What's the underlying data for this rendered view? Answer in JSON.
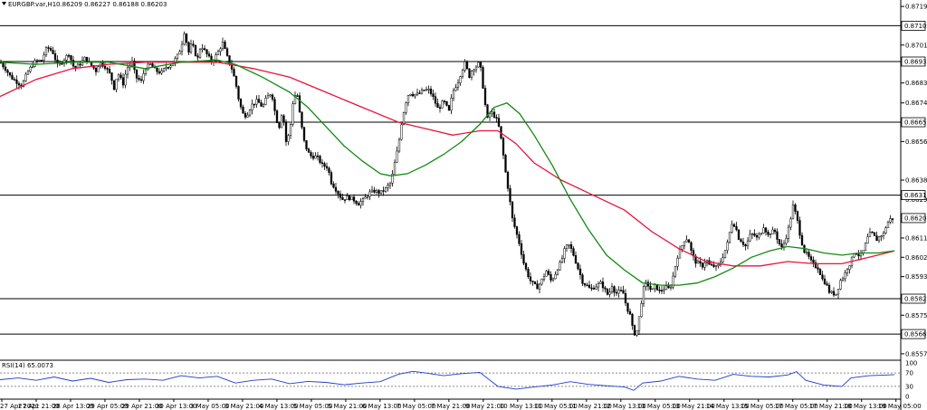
{
  "chart_data": {
    "type": "candlestick",
    "title": "EURGBP.var,H1",
    "ohlc_header": "0.86209 0.86227 0.86188 0.86203",
    "current_price": 0.86203,
    "ylim": [
      0.8554,
      0.8722
    ],
    "y_ticks": [
      "0.87190",
      "0.87010",
      "0.86833",
      "0.86740",
      "0.86560",
      "0.86380",
      "0.86290",
      "0.86110",
      "0.86020",
      "0.85930",
      "0.85750",
      "0.85570"
    ],
    "tags": [
      "0.87100",
      "0.86933",
      "0.86650",
      "0.86310",
      "0.86203",
      "0.85827",
      "0.85662"
    ],
    "x_ticks": [
      "27 Apr 2021",
      "27 Apr 21:00",
      "28 Apr 13:00",
      "29 Apr 05:00",
      "29 Apr 21:00",
      "30 Apr 13:00",
      "3 May 05:00",
      "3 May 21:00",
      "4 May 13:00",
      "5 May 05:00",
      "5 May 21:00",
      "6 May 13:00",
      "7 May 05:00",
      "7 May 21:00",
      "9 May 21:00",
      "10 May 13:00",
      "11 May 05:00",
      "11 May 21:00",
      "12 May 13:00",
      "13 May 05:00",
      "13 May 21:00",
      "14 May 13:00",
      "15 May 05:00",
      "17 May 05:00",
      "17 May 21:00",
      "18 May 13:00",
      "19 May 05:00"
    ],
    "horizontal_levels": [
      0.871,
      0.86933,
      0.8665,
      0.8631,
      0.85827,
      0.85662
    ],
    "close_path": [
      [
        0,
        0.8693
      ],
      [
        6,
        0.869
      ],
      [
        12,
        0.8686
      ],
      [
        18,
        0.8684
      ],
      [
        24,
        0.8682
      ],
      [
        30,
        0.8688
      ],
      [
        38,
        0.8693
      ],
      [
        46,
        0.8694
      ],
      [
        52,
        0.87
      ],
      [
        58,
        0.8698
      ],
      [
        64,
        0.8691
      ],
      [
        70,
        0.8694
      ],
      [
        76,
        0.8697
      ],
      [
        82,
        0.869
      ],
      [
        88,
        0.8692
      ],
      [
        94,
        0.8695
      ],
      [
        100,
        0.8692
      ],
      [
        106,
        0.8689
      ],
      [
        110,
        0.8693
      ],
      [
        116,
        0.8691
      ],
      [
        122,
        0.8687
      ],
      [
        126,
        0.8681
      ],
      [
        130,
        0.8688
      ],
      [
        136,
        0.8683
      ],
      [
        140,
        0.869
      ],
      [
        146,
        0.8693
      ],
      [
        150,
        0.8686
      ],
      [
        156,
        0.8684
      ],
      [
        160,
        0.869
      ],
      [
        166,
        0.8692
      ],
      [
        172,
        0.8689
      ],
      [
        178,
        0.8688
      ],
      [
        184,
        0.8691
      ],
      [
        190,
        0.8692
      ],
      [
        196,
        0.8696
      ],
      [
        200,
        0.87
      ],
      [
        204,
        0.8708
      ],
      [
        208,
        0.8697
      ],
      [
        212,
        0.8702
      ],
      [
        218,
        0.8694
      ],
      [
        222,
        0.8701
      ],
      [
        228,
        0.8697
      ],
      [
        234,
        0.8693
      ],
      [
        240,
        0.8697
      ],
      [
        246,
        0.8702
      ],
      [
        252,
        0.8694
      ],
      [
        256,
        0.869
      ],
      [
        260,
        0.8684
      ],
      [
        264,
        0.8675
      ],
      [
        268,
        0.8669
      ],
      [
        272,
        0.8668
      ],
      [
        278,
        0.8673
      ],
      [
        284,
        0.8675
      ],
      [
        290,
        0.8672
      ],
      [
        294,
        0.8676
      ],
      [
        300,
        0.8679
      ],
      [
        304,
        0.8669
      ],
      [
        308,
        0.8662
      ],
      [
        312,
        0.8671
      ],
      [
        316,
        0.8656
      ],
      [
        320,
        0.866
      ],
      [
        324,
        0.8676
      ],
      [
        328,
        0.8679
      ],
      [
        332,
        0.8666
      ],
      [
        336,
        0.8656
      ],
      [
        340,
        0.8651
      ],
      [
        344,
        0.8649
      ],
      [
        350,
        0.8649
      ],
      [
        356,
        0.8645
      ],
      [
        362,
        0.8644
      ],
      [
        366,
        0.8637
      ],
      [
        372,
        0.8633
      ],
      [
        378,
        0.8629
      ],
      [
        384,
        0.863
      ],
      [
        390,
        0.8629
      ],
      [
        396,
        0.8627
      ],
      [
        402,
        0.8629
      ],
      [
        408,
        0.8632
      ],
      [
        414,
        0.8633
      ],
      [
        420,
        0.8632
      ],
      [
        426,
        0.8634
      ],
      [
        432,
        0.8637
      ],
      [
        436,
        0.8646
      ],
      [
        440,
        0.8654
      ],
      [
        444,
        0.8666
      ],
      [
        448,
        0.8674
      ],
      [
        452,
        0.8679
      ],
      [
        456,
        0.8678
      ],
      [
        462,
        0.8678
      ],
      [
        468,
        0.868
      ],
      [
        474,
        0.868
      ],
      [
        478,
        0.8677
      ],
      [
        484,
        0.8671
      ],
      [
        490,
        0.8675
      ],
      [
        496,
        0.867
      ],
      [
        500,
        0.8679
      ],
      [
        506,
        0.8684
      ],
      [
        510,
        0.8689
      ],
      [
        514,
        0.8693
      ],
      [
        518,
        0.8686
      ],
      [
        522,
        0.869
      ],
      [
        526,
        0.8691
      ],
      [
        530,
        0.8693
      ],
      [
        534,
        0.868
      ],
      [
        538,
        0.8666
      ],
      [
        542,
        0.867
      ],
      [
        546,
        0.8668
      ],
      [
        550,
        0.8665
      ],
      [
        554,
        0.8656
      ],
      [
        558,
        0.8643
      ],
      [
        562,
        0.8632
      ],
      [
        566,
        0.862
      ],
      [
        570,
        0.8614
      ],
      [
        574,
        0.8608
      ],
      [
        578,
        0.86
      ],
      [
        582,
        0.8595
      ],
      [
        586,
        0.8591
      ],
      [
        590,
        0.8589
      ],
      [
        594,
        0.8588
      ],
      [
        598,
        0.8591
      ],
      [
        604,
        0.8596
      ],
      [
        608,
        0.8591
      ],
      [
        612,
        0.8593
      ],
      [
        616,
        0.8597
      ],
      [
        620,
        0.86
      ],
      [
        624,
        0.8606
      ],
      [
        628,
        0.8608
      ],
      [
        632,
        0.8605
      ],
      [
        636,
        0.86
      ],
      [
        640,
        0.8595
      ],
      [
        644,
        0.859
      ],
      [
        648,
        0.8589
      ],
      [
        652,
        0.8587
      ],
      [
        656,
        0.8588
      ],
      [
        660,
        0.8589
      ],
      [
        664,
        0.859
      ],
      [
        668,
        0.8587
      ],
      [
        672,
        0.8584
      ],
      [
        676,
        0.8589
      ],
      [
        680,
        0.8585
      ],
      [
        684,
        0.8586
      ],
      [
        688,
        0.8586
      ],
      [
        692,
        0.8579
      ],
      [
        696,
        0.8575
      ],
      [
        700,
        0.8566
      ],
      [
        704,
        0.8568
      ],
      [
        708,
        0.858
      ],
      [
        712,
        0.859
      ],
      [
        716,
        0.8589
      ],
      [
        720,
        0.8586
      ],
      [
        724,
        0.8589
      ],
      [
        728,
        0.8586
      ],
      [
        732,
        0.8587
      ],
      [
        736,
        0.8588
      ],
      [
        740,
        0.8587
      ],
      [
        744,
        0.8594
      ],
      [
        748,
        0.8602
      ],
      [
        752,
        0.8606
      ],
      [
        756,
        0.861
      ],
      [
        760,
        0.8611
      ],
      [
        764,
        0.8604
      ],
      [
        768,
        0.86
      ],
      [
        772,
        0.8599
      ],
      [
        776,
        0.8598
      ],
      [
        780,
        0.8601
      ],
      [
        784,
        0.8598
      ],
      [
        788,
        0.8598
      ],
      [
        792,
        0.8597
      ],
      [
        796,
        0.86
      ],
      [
        800,
        0.8604
      ],
      [
        804,
        0.8609
      ],
      [
        808,
        0.8618
      ],
      [
        812,
        0.8617
      ],
      [
        816,
        0.8611
      ],
      [
        820,
        0.8609
      ],
      [
        824,
        0.8607
      ],
      [
        828,
        0.8612
      ],
      [
        832,
        0.8613
      ],
      [
        836,
        0.8611
      ],
      [
        840,
        0.8613
      ],
      [
        844,
        0.8617
      ],
      [
        848,
        0.8612
      ],
      [
        852,
        0.8614
      ],
      [
        856,
        0.8614
      ],
      [
        860,
        0.8609
      ],
      [
        864,
        0.8606
      ],
      [
        868,
        0.8611
      ],
      [
        872,
        0.8617
      ],
      [
        876,
        0.8626
      ],
      [
        880,
        0.8621
      ],
      [
        884,
        0.8612
      ],
      [
        888,
        0.8605
      ],
      [
        892,
        0.8603
      ],
      [
        896,
        0.86
      ],
      [
        900,
        0.8598
      ],
      [
        904,
        0.8597
      ],
      [
        908,
        0.8592
      ],
      [
        912,
        0.859
      ],
      [
        916,
        0.8586
      ],
      [
        920,
        0.8585
      ],
      [
        924,
        0.8585
      ],
      [
        928,
        0.8591
      ],
      [
        932,
        0.8593
      ],
      [
        936,
        0.8597
      ],
      [
        940,
        0.86
      ],
      [
        944,
        0.8605
      ],
      [
        948,
        0.8603
      ],
      [
        952,
        0.8603
      ],
      [
        956,
        0.8608
      ],
      [
        960,
        0.8613
      ],
      [
        964,
        0.8613
      ],
      [
        968,
        0.861
      ],
      [
        972,
        0.8612
      ],
      [
        976,
        0.8613
      ],
      [
        980,
        0.8618
      ],
      [
        984,
        0.862
      ],
      [
        988,
        0.862
      ]
    ],
    "ma_green": [
      [
        0,
        0.8693
      ],
      [
        40,
        0.8692
      ],
      [
        80,
        0.8693
      ],
      [
        120,
        0.8693
      ],
      [
        160,
        0.869
      ],
      [
        200,
        0.8693
      ],
      [
        240,
        0.8694
      ],
      [
        260,
        0.8692
      ],
      [
        290,
        0.8686
      ],
      [
        320,
        0.8679
      ],
      [
        340,
        0.8672
      ],
      [
        360,
        0.8663
      ],
      [
        380,
        0.8654
      ],
      [
        400,
        0.8647
      ],
      [
        420,
        0.8641
      ],
      [
        432,
        0.864
      ],
      [
        450,
        0.8641
      ],
      [
        470,
        0.8645
      ],
      [
        490,
        0.865
      ],
      [
        510,
        0.8656
      ],
      [
        530,
        0.8664
      ],
      [
        546,
        0.8672
      ],
      [
        560,
        0.8674
      ],
      [
        574,
        0.8669
      ],
      [
        590,
        0.8659
      ],
      [
        610,
        0.8645
      ],
      [
        630,
        0.8629
      ],
      [
        650,
        0.8615
      ],
      [
        670,
        0.8603
      ],
      [
        690,
        0.8596
      ],
      [
        710,
        0.859
      ],
      [
        730,
        0.8589
      ],
      [
        750,
        0.8589
      ],
      [
        770,
        0.859
      ],
      [
        790,
        0.8593
      ],
      [
        810,
        0.8597
      ],
      [
        830,
        0.8602
      ],
      [
        850,
        0.8605
      ],
      [
        870,
        0.8607
      ],
      [
        890,
        0.8606
      ],
      [
        910,
        0.8604
      ],
      [
        930,
        0.8603
      ],
      [
        950,
        0.8604
      ],
      [
        970,
        0.8604
      ],
      [
        988,
        0.8605
      ]
    ],
    "ma_red": [
      [
        0,
        0.8677
      ],
      [
        40,
        0.8685
      ],
      [
        80,
        0.869
      ],
      [
        120,
        0.8692
      ],
      [
        160,
        0.8693
      ],
      [
        200,
        0.8693
      ],
      [
        240,
        0.8693
      ],
      [
        280,
        0.869
      ],
      [
        320,
        0.8686
      ],
      [
        360,
        0.8679
      ],
      [
        400,
        0.8672
      ],
      [
        440,
        0.8665
      ],
      [
        470,
        0.8662
      ],
      [
        500,
        0.8659
      ],
      [
        530,
        0.8661
      ],
      [
        550,
        0.8661
      ],
      [
        570,
        0.8655
      ],
      [
        590,
        0.8646
      ],
      [
        620,
        0.8638
      ],
      [
        650,
        0.8632
      ],
      [
        690,
        0.8624
      ],
      [
        720,
        0.8614
      ],
      [
        750,
        0.8606
      ],
      [
        780,
        0.86
      ],
      [
        810,
        0.8598
      ],
      [
        840,
        0.8598
      ],
      [
        870,
        0.86
      ],
      [
        900,
        0.8599
      ],
      [
        930,
        0.8599
      ],
      [
        960,
        0.8602
      ],
      [
        988,
        0.8605
      ]
    ],
    "rsi": {
      "label": "RSI(14) 65.0073",
      "value": 65.0073,
      "ylim": [
        0,
        100
      ],
      "y_ticks": [
        "100",
        "70",
        "30",
        "0"
      ],
      "levels": [
        70,
        30
      ],
      "path": [
        [
          0,
          50
        ],
        [
          20,
          55
        ],
        [
          40,
          48
        ],
        [
          60,
          58
        ],
        [
          80,
          46
        ],
        [
          100,
          54
        ],
        [
          120,
          42
        ],
        [
          140,
          50
        ],
        [
          160,
          52
        ],
        [
          180,
          48
        ],
        [
          200,
          62
        ],
        [
          220,
          55
        ],
        [
          240,
          60
        ],
        [
          260,
          40
        ],
        [
          280,
          48
        ],
        [
          300,
          52
        ],
        [
          320,
          38
        ],
        [
          340,
          45
        ],
        [
          360,
          42
        ],
        [
          380,
          35
        ],
        [
          400,
          40
        ],
        [
          420,
          44
        ],
        [
          440,
          66
        ],
        [
          456,
          75
        ],
        [
          470,
          70
        ],
        [
          490,
          62
        ],
        [
          510,
          68
        ],
        [
          530,
          72
        ],
        [
          550,
          30
        ],
        [
          570,
          22
        ],
        [
          590,
          28
        ],
        [
          610,
          34
        ],
        [
          630,
          44
        ],
        [
          650,
          36
        ],
        [
          670,
          32
        ],
        [
          690,
          28
        ],
        [
          700,
          18
        ],
        [
          710,
          40
        ],
        [
          730,
          46
        ],
        [
          750,
          60
        ],
        [
          770,
          52
        ],
        [
          790,
          48
        ],
        [
          810,
          66
        ],
        [
          830,
          60
        ],
        [
          850,
          58
        ],
        [
          870,
          64
        ],
        [
          880,
          74
        ],
        [
          890,
          48
        ],
        [
          910,
          34
        ],
        [
          930,
          30
        ],
        [
          940,
          55
        ],
        [
          960,
          62
        ],
        [
          980,
          64
        ],
        [
          988,
          65
        ]
      ]
    }
  }
}
